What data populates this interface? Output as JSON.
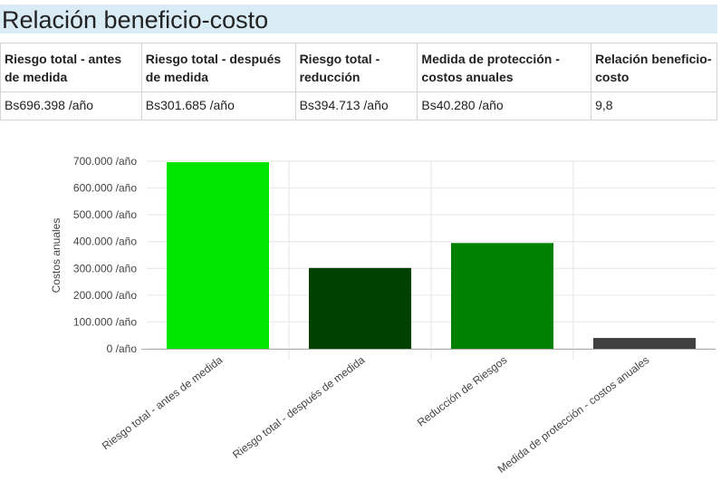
{
  "header": {
    "title": "Relación beneficio-costo"
  },
  "table": {
    "columns": [
      "Riesgo total - antes de medida",
      "Riesgo total - después de medida",
      "Riesgo total - reducción",
      "Medida de protección - costos anuales",
      "Relación beneficio-costo"
    ],
    "row": [
      "Bs696.398 /año",
      "Bs301.685 /año",
      "Bs394.713 /año",
      "Bs40.280 /año",
      "9,8"
    ]
  },
  "chart_data": {
    "type": "bar",
    "ylabel": "Costos anuales",
    "xlabel": "",
    "ylim": [
      0,
      700000
    ],
    "yticks": [
      0,
      100000,
      200000,
      300000,
      400000,
      500000,
      600000,
      700000
    ],
    "ytick_labels": [
      "0 /año",
      "100.000 /año",
      "200.000 /año",
      "300.000 /año",
      "400.000 /año",
      "500.000 /año",
      "600.000 /año",
      "700.000 /año"
    ],
    "categories": [
      "Riesgo total - antes de medida",
      "Riesgo total - después de medida",
      "Reducción de Riesgos",
      "Medida de protección - costos anuales"
    ],
    "values": [
      696398,
      301685,
      394713,
      40280
    ],
    "colors": [
      "#00e600",
      "#004000",
      "#008000",
      "#404040"
    ],
    "grid": true
  }
}
